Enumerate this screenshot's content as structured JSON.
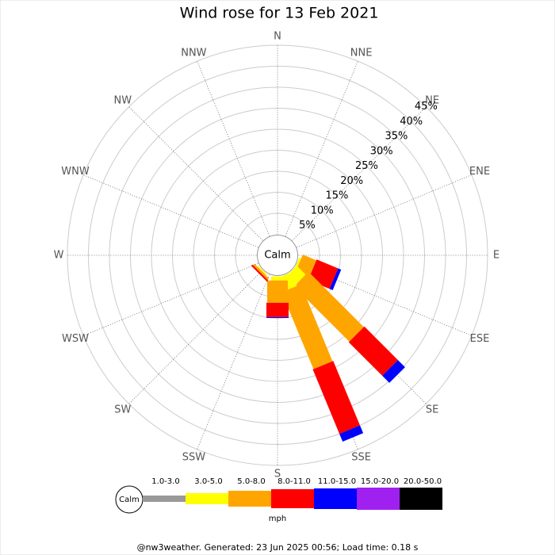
{
  "chart_data": {
    "type": "wind-rose",
    "title": "Wind rose for 13 Feb 2021",
    "calm_label": "Calm",
    "units": "mph",
    "footer": "@nw3weather. Generated: 23 Jun 2025 00:56; Load time: 0.18 s",
    "categories": [
      "N",
      "NNE",
      "NE",
      "ENE",
      "E",
      "ESE",
      "SE",
      "SSE",
      "S",
      "SSW",
      "SW",
      "WSW",
      "W",
      "WNW",
      "NW",
      "NNW"
    ],
    "rlim": [
      0,
      45
    ],
    "rticks": [
      {
        "value": 5,
        "label": "5%"
      },
      {
        "value": 10,
        "label": "10%"
      },
      {
        "value": 15,
        "label": "15%"
      },
      {
        "value": 20,
        "label": "20%"
      },
      {
        "value": 25,
        "label": "25%"
      },
      {
        "value": 30,
        "label": "30%"
      },
      {
        "value": 35,
        "label": "35%"
      },
      {
        "value": 40,
        "label": "40%"
      },
      {
        "value": 45,
        "label": "45%"
      }
    ],
    "series": [
      {
        "name": "1.0-3.0",
        "color": "#999999",
        "values": [
          0,
          0,
          0,
          0,
          0,
          0,
          0,
          0,
          0,
          0,
          0,
          0,
          0,
          0,
          0,
          0
        ]
      },
      {
        "name": "3.0-5.0",
        "color": "#ffff00",
        "values": [
          0,
          0,
          0,
          0,
          0,
          0.5,
          3,
          3.5,
          1,
          0,
          0.3,
          0,
          0,
          0,
          0,
          0
        ]
      },
      {
        "name": "5.0-8.0",
        "color": "#ffa500",
        "values": [
          0,
          0,
          0,
          0,
          0,
          3.5,
          18.6,
          19.8,
          5.3,
          0,
          0.5,
          0,
          0,
          0,
          0,
          0
        ]
      },
      {
        "name": "8.0-11.0",
        "color": "#ff0000",
        "values": [
          0,
          0,
          0,
          0,
          0,
          5.5,
          11.3,
          16.6,
          3.4,
          0,
          0.4,
          0,
          0,
          0,
          0,
          0
        ]
      },
      {
        "name": "11.0-15.0",
        "color": "#0000ff",
        "values": [
          0,
          0,
          0,
          0,
          0,
          0.8,
          2.4,
          2,
          0.2,
          0,
          0,
          0,
          0,
          0,
          0,
          0
        ]
      },
      {
        "name": "15.0-20.0",
        "color": "#a020f0",
        "values": [
          0,
          0,
          0,
          0,
          0,
          0,
          0,
          0,
          0,
          0,
          0,
          0,
          0,
          0,
          0,
          0
        ]
      },
      {
        "name": "20.0-50.0",
        "color": "#000000",
        "values": [
          0,
          0,
          0,
          0,
          0,
          0,
          0,
          0,
          0,
          0,
          0,
          0,
          0,
          0,
          0,
          0
        ]
      }
    ]
  }
}
